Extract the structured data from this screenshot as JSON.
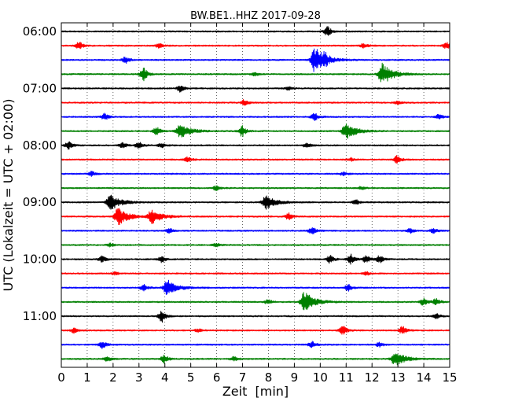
{
  "chart_data": {
    "type": "line",
    "title": "BW.BE1..HHZ 2017-09-28",
    "xlabel": "Zeit  [min]",
    "ylabel": "UTC (Lokalzeit = UTC + 02:00)",
    "xlim": [
      0,
      15
    ],
    "x_ticks": [
      "0",
      "1",
      "2",
      "3",
      "4",
      "5",
      "6",
      "7",
      "8",
      "9",
      "10",
      "11",
      "12",
      "13",
      "14",
      "15"
    ],
    "y_ticks": [
      "06:00",
      "07:00",
      "08:00",
      "09:00",
      "10:00",
      "11:00"
    ],
    "grid": "vertical-dotted",
    "trace_colors": [
      "#000000",
      "#ff0000",
      "#0000ff",
      "#008000"
    ],
    "traces": [
      {
        "start": "06:00",
        "events": [
          [
            10.3,
            6
          ]
        ]
      },
      {
        "start": "06:15",
        "events": [
          [
            0.7,
            5
          ],
          [
            3.8,
            3
          ],
          [
            11.7,
            3
          ],
          [
            14.9,
            4
          ]
        ]
      },
      {
        "start": "06:30",
        "events": [
          [
            2.5,
            4
          ],
          [
            9.8,
            16
          ],
          [
            10.2,
            5
          ]
        ]
      },
      {
        "start": "06:45",
        "events": [
          [
            3.2,
            8
          ],
          [
            7.5,
            2
          ],
          [
            12.4,
            14
          ]
        ]
      },
      {
        "start": "07:00",
        "events": [
          [
            4.6,
            4
          ],
          [
            8.8,
            2
          ]
        ]
      },
      {
        "start": "07:15",
        "events": [
          [
            7.1,
            4
          ],
          [
            13.0,
            2
          ]
        ]
      },
      {
        "start": "07:30",
        "events": [
          [
            1.7,
            4
          ],
          [
            9.8,
            5
          ],
          [
            14.6,
            3
          ]
        ]
      },
      {
        "start": "07:45",
        "events": [
          [
            3.7,
            5
          ],
          [
            4.6,
            9
          ],
          [
            7.0,
            7
          ],
          [
            11.0,
            10
          ]
        ]
      },
      {
        "start": "08:00",
        "events": [
          [
            0.3,
            5
          ],
          [
            2.4,
            4
          ],
          [
            3.0,
            5
          ],
          [
            3.9,
            3
          ],
          [
            9.5,
            3
          ]
        ]
      },
      {
        "start": "08:15",
        "events": [
          [
            4.9,
            3
          ],
          [
            11.2,
            2
          ],
          [
            13.0,
            5
          ]
        ]
      },
      {
        "start": "08:30",
        "events": [
          [
            1.2,
            3
          ],
          [
            10.9,
            2
          ]
        ]
      },
      {
        "start": "08:45",
        "events": [
          [
            6.0,
            3
          ],
          [
            11.6,
            2
          ]
        ]
      },
      {
        "start": "09:00",
        "events": [
          [
            1.9,
            10
          ],
          [
            7.9,
            9
          ],
          [
            11.4,
            3
          ]
        ]
      },
      {
        "start": "09:15",
        "events": [
          [
            2.2,
            11
          ],
          [
            3.5,
            9
          ],
          [
            8.8,
            4
          ]
        ]
      },
      {
        "start": "09:30",
        "events": [
          [
            4.2,
            3
          ],
          [
            9.7,
            5
          ],
          [
            13.5,
            3
          ],
          [
            14.4,
            3
          ]
        ]
      },
      {
        "start": "09:45",
        "events": [
          [
            1.9,
            2
          ],
          [
            6.0,
            2
          ]
        ]
      },
      {
        "start": "10:00",
        "events": [
          [
            1.6,
            4
          ],
          [
            3.9,
            4
          ],
          [
            10.4,
            5
          ],
          [
            11.2,
            6
          ],
          [
            11.8,
            5
          ],
          [
            12.3,
            5
          ]
        ]
      },
      {
        "start": "10:15",
        "events": [
          [
            2.1,
            2
          ],
          [
            11.8,
            2
          ]
        ]
      },
      {
        "start": "10:30",
        "events": [
          [
            3.2,
            4
          ],
          [
            4.1,
            10
          ],
          [
            11.1,
            4
          ]
        ]
      },
      {
        "start": "10:45",
        "events": [
          [
            8.0,
            3
          ],
          [
            9.4,
            13
          ],
          [
            14.0,
            5
          ],
          [
            14.5,
            4
          ]
        ]
      },
      {
        "start": "11:00",
        "events": [
          [
            3.9,
            7
          ],
          [
            14.5,
            3
          ]
        ]
      },
      {
        "start": "11:15",
        "events": [
          [
            0.5,
            3
          ],
          [
            5.3,
            2
          ],
          [
            10.9,
            6
          ],
          [
            13.2,
            5
          ]
        ]
      },
      {
        "start": "11:30",
        "events": [
          [
            1.6,
            5
          ],
          [
            9.7,
            4
          ],
          [
            12.3,
            3
          ]
        ]
      },
      {
        "start": "11:45",
        "events": [
          [
            1.8,
            3
          ],
          [
            4.0,
            5
          ],
          [
            6.7,
            3
          ],
          [
            12.9,
            9
          ]
        ]
      }
    ]
  }
}
